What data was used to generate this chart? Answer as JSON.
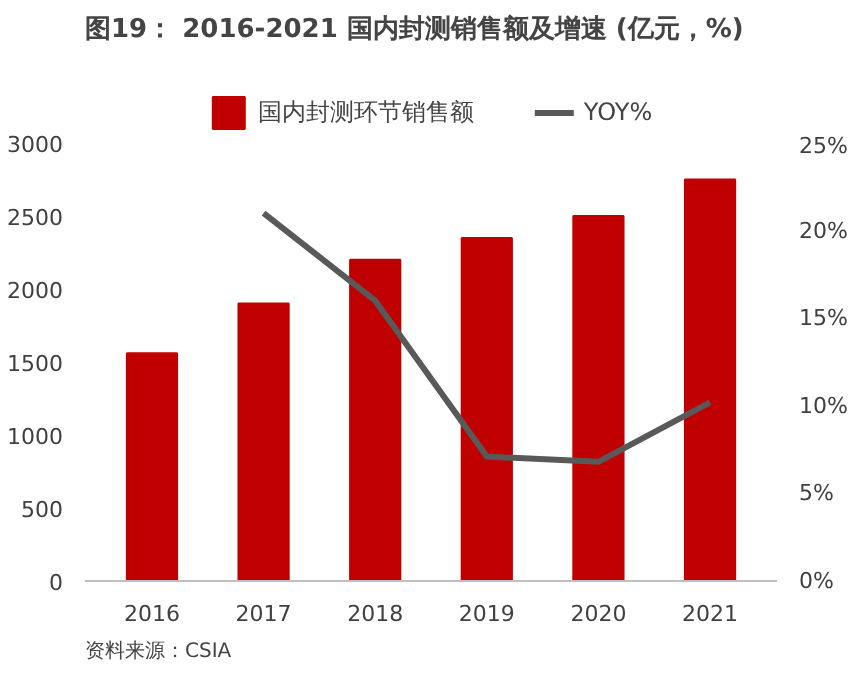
{
  "chart_data": {
    "type": "bar",
    "title": "图19：  2016-2021 国内封测销售额及增速 (亿元，%)",
    "categories": [
      "2016",
      "2017",
      "2018",
      "2019",
      "2020",
      "2021"
    ],
    "series": [
      {
        "name": "国内封测环节销售额",
        "color": "#c00000",
        "values": [
          1560,
          1900,
          2200,
          2350,
          2500,
          2750
        ]
      },
      {
        "name": "YOY%",
        "type": "line",
        "axis": "y2",
        "color": "#595959",
        "values": [
          null,
          21,
          16,
          7.1,
          6.8,
          10.2
        ]
      }
    ],
    "ylim": [
      0,
      3000
    ],
    "yticks": [
      0,
      500,
      1000,
      1500,
      2000,
      2500,
      3000
    ],
    "y2lim": [
      0,
      25
    ],
    "y2ticks": [
      {
        "value": 0,
        "label": "0%"
      },
      {
        "value": 5,
        "label": "5%"
      },
      {
        "value": 10,
        "label": "10%"
      },
      {
        "value": 15,
        "label": "15%"
      },
      {
        "value": 20,
        "label": "20%"
      },
      {
        "value": 25,
        "label": "25%"
      }
    ],
    "legend": "top",
    "grid": false,
    "annotations": [
      "资料来源：CSIA"
    ]
  }
}
